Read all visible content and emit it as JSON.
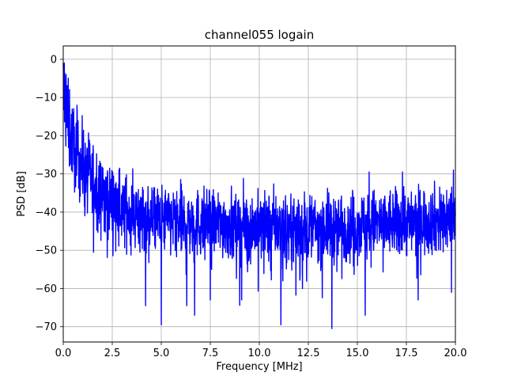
{
  "chart_data": {
    "type": "line",
    "title": "channel055 logain",
    "xlabel": "Frequency [MHz]",
    "ylabel": "PSD [dB]",
    "xlim": [
      0,
      20
    ],
    "ylim": [
      -74,
      3.5
    ],
    "xticks": [
      0,
      2.5,
      5,
      7.5,
      10,
      12.5,
      15,
      17.5,
      20
    ],
    "xtick_labels": [
      "0.0",
      "2.5",
      "5.0",
      "7.5",
      "10.0",
      "12.5",
      "15.0",
      "17.5",
      "20.0"
    ],
    "yticks": [
      0,
      -10,
      -20,
      -30,
      -40,
      -50,
      -60,
      -70
    ],
    "ytick_labels": [
      "0",
      "−10",
      "−20",
      "−30",
      "−40",
      "−50",
      "−60",
      "−70"
    ],
    "grid": true,
    "series": [
      {
        "color": "#0000ff",
        "style": "noisy power spectral density trace",
        "x": [
          0.0,
          0.1,
          0.2,
          0.3,
          0.4,
          0.5,
          0.75,
          1.0,
          1.25,
          1.5,
          2.0,
          2.5,
          3.0,
          3.5,
          4.0,
          5.0,
          6.0,
          7.0,
          8.0,
          9.0,
          10.0,
          11.0,
          12.0,
          13.0,
          14.0,
          15.0,
          16.0,
          17.0,
          18.0,
          19.0,
          20.0
        ],
        "mean": [
          -8,
          -12,
          -15,
          -18,
          -20,
          -22,
          -25,
          -28,
          -30,
          -32,
          -35,
          -37,
          -39,
          -40,
          -41,
          -42,
          -42.5,
          -43,
          -43,
          -43.5,
          -44,
          -44,
          -44,
          -44,
          -44,
          -43.5,
          -43,
          -43,
          -42.5,
          -42,
          -41.5
        ],
        "spread": [
          7,
          7,
          7,
          7,
          6,
          6,
          6,
          6,
          6,
          6,
          5.5,
          5.5,
          5,
          5,
          5,
          5,
          5,
          5,
          5,
          5,
          5,
          5,
          5,
          5,
          5,
          5,
          5,
          5,
          5,
          5,
          5
        ],
        "min_notches": [
          {
            "x": 4.2,
            "y": -64.5
          },
          {
            "x": 5.0,
            "y": -69.5
          },
          {
            "x": 6.3,
            "y": -64.5
          },
          {
            "x": 6.7,
            "y": -67.0
          },
          {
            "x": 7.5,
            "y": -63.0
          },
          {
            "x": 9.1,
            "y": -63.0
          },
          {
            "x": 11.1,
            "y": -69.5
          },
          {
            "x": 12.2,
            "y": -60.0
          },
          {
            "x": 13.7,
            "y": -70.5
          },
          {
            "x": 15.4,
            "y": -67.0
          },
          {
            "x": 18.1,
            "y": -63.0
          },
          {
            "x": 19.8,
            "y": -61.0
          }
        ],
        "max_peaks": [
          {
            "x": 0.05,
            "y": -1.0
          },
          {
            "x": 0.15,
            "y": -4.0
          },
          {
            "x": 15.6,
            "y": -29.5
          },
          {
            "x": 17.3,
            "y": -29.5
          },
          {
            "x": 19.9,
            "y": -29.0
          }
        ]
      }
    ]
  }
}
